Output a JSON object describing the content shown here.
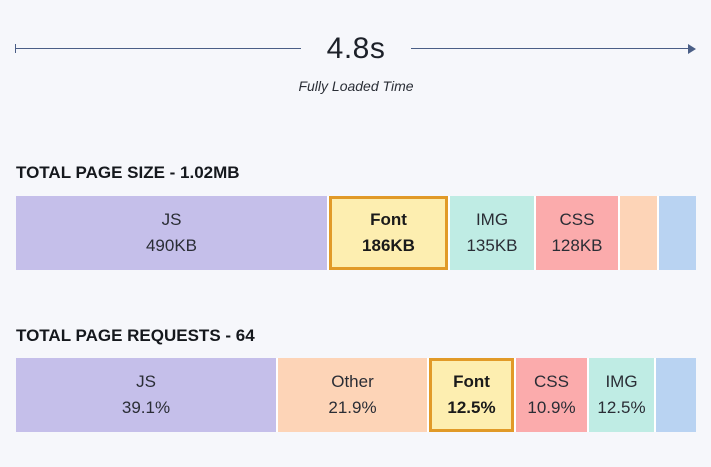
{
  "timeline": {
    "value": "4.8s",
    "caption": "Fully Loaded Time"
  },
  "size_section": {
    "title": "TOTAL PAGE SIZE - 1.02MB",
    "segments": [
      {
        "label": "JS",
        "value": "490KB",
        "color": "#c5bfea",
        "highlight": false
      },
      {
        "label": "Font",
        "value": "186KB",
        "color": "#fdeeb0",
        "highlight": true
      },
      {
        "label": "IMG",
        "value": "135KB",
        "color": "#bfece4",
        "highlight": false
      },
      {
        "label": "CSS",
        "value": "128KB",
        "color": "#fbabac",
        "highlight": false
      },
      {
        "label": "",
        "value": "",
        "color": "#fdd4b7",
        "highlight": false
      },
      {
        "label": "",
        "value": "",
        "color": "#b9d3f2",
        "highlight": false
      }
    ]
  },
  "requests_section": {
    "title": "TOTAL PAGE REQUESTS - 64",
    "segments": [
      {
        "label": "JS",
        "value": "39.1%",
        "color": "#c5bfea",
        "highlight": false
      },
      {
        "label": "Other",
        "value": "21.9%",
        "color": "#fdd4b7",
        "highlight": false
      },
      {
        "label": "Font",
        "value": "12.5%",
        "color": "#fdeeb0",
        "highlight": true
      },
      {
        "label": "CSS",
        "value": "10.9%",
        "color": "#fbabac",
        "highlight": false
      },
      {
        "label": "IMG",
        "value": "12.5%",
        "color": "#bfece4",
        "highlight": false
      },
      {
        "label": "",
        "value": "",
        "color": "#b9d3f2",
        "highlight": false
      }
    ]
  }
}
